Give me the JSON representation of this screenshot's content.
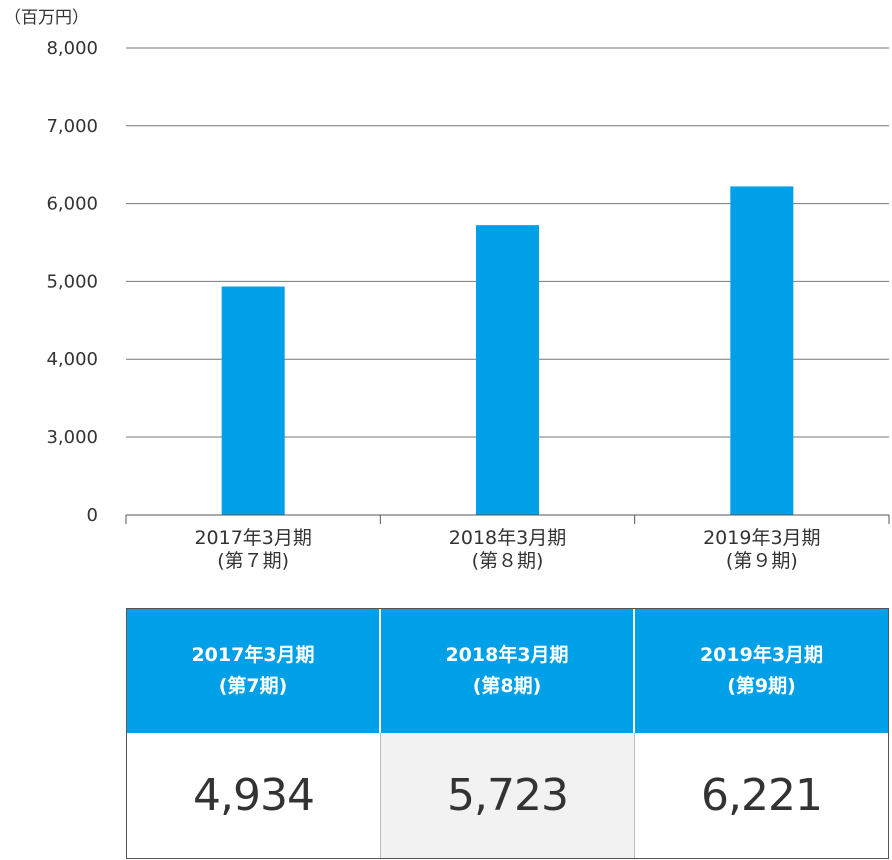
{
  "unit_label": "（百万円）",
  "chart_data": {
    "type": "bar",
    "title": "",
    "xlabel": "",
    "ylabel": "（百万円）",
    "categories": [
      [
        "2017年3月期",
        "(第７期)"
      ],
      [
        "2018年3月期",
        "(第８期)"
      ],
      [
        "2019年3月期",
        "(第９期)"
      ]
    ],
    "values": [
      4934,
      5723,
      6221
    ],
    "ylim": [
      0,
      8000
    ],
    "axis_break": [
      0,
      2500
    ],
    "yticks": [
      0,
      3000,
      4000,
      5000,
      6000,
      7000,
      8000
    ],
    "ytick_labels": [
      "0",
      "3,000",
      "4,000",
      "5,000",
      "6,000",
      "7,000",
      "8,000"
    ],
    "grid": true,
    "bar_color": "#00a0e9"
  },
  "table": {
    "headers": [
      {
        "line1": "2017年3月期",
        "line2": "(第7期)"
      },
      {
        "line1": "2018年3月期",
        "line2": "(第8期)"
      },
      {
        "line1": "2019年3月期",
        "line2": "(第9期)"
      }
    ],
    "values": [
      "4,934",
      "5,723",
      "6,221"
    ],
    "header_color": "#00a0e9",
    "shaded_color": "#f2f2f2"
  }
}
